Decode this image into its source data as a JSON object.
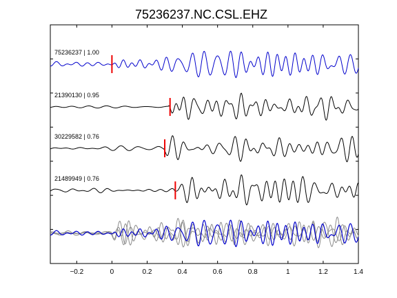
{
  "chart_data": {
    "type": "line",
    "title": "75236237.NC.CSL.EHZ",
    "xlabel": "",
    "ylabel": "",
    "xlim": [
      -0.35,
      1.4
    ],
    "xticks": [
      -0.2,
      0,
      0.2,
      0.4,
      0.6,
      0.8,
      1,
      1.2,
      1.4
    ],
    "xtick_labels": [
      "−0.2",
      "0",
      "0.2",
      "0.4",
      "0.6",
      "0.8",
      "1",
      "1.2",
      "1.4"
    ],
    "grid": false,
    "colors": {
      "template": "#0000cc",
      "match": "#000000",
      "overlay": "#8c8c8c",
      "pick": "#ee0000"
    },
    "series": [
      {
        "name": "75236237 | 1.00",
        "id": "75236237",
        "cc": "1.00",
        "pick_time": 0.0,
        "role": "template"
      },
      {
        "name": "21390130 | 0.95",
        "id": "21390130",
        "cc": "0.95",
        "pick_time": 0.33,
        "role": "match"
      },
      {
        "name": "30229582 | 0.76",
        "id": "30229582",
        "cc": "0.76",
        "pick_time": 0.3,
        "role": "match"
      },
      {
        "name": "21489949 | 0.76",
        "id": "21489949",
        "cc": "0.76",
        "pick_time": 0.36,
        "role": "match"
      }
    ],
    "overlay": "all traces aligned and superimposed at bottom"
  }
}
